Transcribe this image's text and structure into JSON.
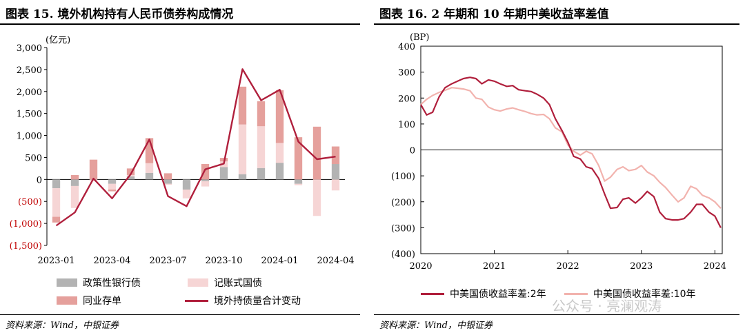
{
  "left": {
    "title": "图表 15. 境外机构持有人民币债券构成情况",
    "unit": "(亿元)",
    "source": "资料来源：Wind，中银证券",
    "legend": [
      {
        "label": "政策性银行债",
        "color": "#b3b3b3",
        "kind": "box"
      },
      {
        "label": "记账式国债",
        "color": "#f6d5d5",
        "kind": "box"
      },
      {
        "label": "同业存单",
        "color": "#e5a09c",
        "kind": "box"
      },
      {
        "label": "境外持债量合计变动",
        "color": "#b01f3c",
        "kind": "line"
      }
    ]
  },
  "right": {
    "title": "图表 16. 2 年期和 10 年期中美收益率差值",
    "unit": "(BP)",
    "source": "资料来源：Wind，中银证券",
    "legend": [
      {
        "label": "中美国债收益率差:2年",
        "color": "#b01f3c"
      },
      {
        "label": "中美国债收益率差:10年",
        "color": "#f2b3ae"
      }
    ]
  },
  "watermark": "公众号 · 亮澜观涛",
  "chart_data": [
    {
      "type": "bar",
      "title": "图表 15. 境外机构持有人民币债券构成情况",
      "ylabel": "(亿元)",
      "ylim": [
        -1500,
        3000
      ],
      "yticks": [
        3000,
        2500,
        2000,
        1500,
        1000,
        500,
        0,
        -500,
        -1000,
        -1500
      ],
      "ytick_labels": [
        "3,000",
        "2,500",
        "2,000",
        "1,500",
        "1,000",
        "500",
        "0",
        "(500)",
        "(1,000)",
        "(1,500)"
      ],
      "categories": [
        "2023-01",
        "2023-02",
        "2023-03",
        "2023-04",
        "2023-05",
        "2023-06",
        "2023-07",
        "2023-08",
        "2023-09",
        "2023-10",
        "2023-11",
        "2023-12",
        "2024-01",
        "2024-02",
        "2024-03",
        "2024-04"
      ],
      "xtick_labels": {
        "2023-01": "2023-01",
        "2023-04": "2023-04",
        "2023-07": "2023-07",
        "2023-10": "2023-10",
        "2024-01": "2024-01",
        "2024-04": "2024-04"
      },
      "stacked": true,
      "series": [
        {
          "name": "政策性银行债",
          "color": "#b3b3b3",
          "values": [
            -200,
            -150,
            0,
            -100,
            70,
            150,
            -100,
            -230,
            -40,
            280,
            120,
            260,
            380,
            -100,
            0,
            350
          ]
        },
        {
          "name": "记账式国债",
          "color": "#f6d5d5",
          "values": [
            -650,
            -500,
            -40,
            -130,
            30,
            220,
            -20,
            -200,
            -120,
            130,
            1130,
            950,
            450,
            -30,
            -830,
            -250
          ]
        },
        {
          "name": "同业存单",
          "color": "#e5a09c",
          "values": [
            -130,
            100,
            450,
            -40,
            150,
            570,
            140,
            0,
            350,
            80,
            860,
            570,
            1200,
            960,
            1200,
            400
          ]
        },
        {
          "name": "境外持债量合计变动",
          "color": "#b01f3c",
          "type": "line",
          "values": [
            -1050,
            -750,
            20,
            -430,
            120,
            910,
            -380,
            -610,
            230,
            360,
            2510,
            1800,
            2040,
            860,
            460,
            520
          ]
        }
      ]
    },
    {
      "type": "line",
      "title": "图表 16. 2 年期和 10 年期中美收益率差值",
      "ylabel": "(BP)",
      "ylim": [
        -400,
        400
      ],
      "yticks": [
        400,
        300,
        200,
        100,
        0,
        -100,
        -200,
        -300,
        -400
      ],
      "ytick_labels": [
        "400",
        "300",
        "200",
        "100",
        "0",
        "(100)",
        "(200)",
        "(300)",
        "(400)"
      ],
      "xlim": [
        2020.0,
        2024.1
      ],
      "xticks": [
        2020,
        2021,
        2022,
        2023,
        2024
      ],
      "xtick_labels": [
        "2020",
        "2021",
        "2022",
        "2023",
        "2024"
      ],
      "series": [
        {
          "name": "中美国债收益率差:2年",
          "color": "#b01f3c",
          "x": [
            2020.0,
            2020.08,
            2020.16,
            2020.25,
            2020.33,
            2020.42,
            2020.5,
            2020.58,
            2020.67,
            2020.75,
            2020.83,
            2020.92,
            2021.0,
            2021.08,
            2021.17,
            2021.25,
            2021.33,
            2021.42,
            2021.5,
            2021.58,
            2021.67,
            2021.75,
            2021.83,
            2021.92,
            2022.0,
            2022.08,
            2022.17,
            2022.25,
            2022.33,
            2022.42,
            2022.5,
            2022.58,
            2022.67,
            2022.75,
            2022.83,
            2022.92,
            2023.0,
            2023.08,
            2023.17,
            2023.25,
            2023.33,
            2023.42,
            2023.5,
            2023.58,
            2023.67,
            2023.75,
            2023.83,
            2023.92,
            2024.0,
            2024.08
          ],
          "y": [
            175,
            135,
            145,
            205,
            240,
            255,
            265,
            275,
            280,
            275,
            255,
            270,
            265,
            255,
            245,
            248,
            232,
            228,
            225,
            215,
            200,
            175,
            120,
            75,
            30,
            -25,
            -35,
            -65,
            -72,
            -110,
            -170,
            -225,
            -222,
            -190,
            -185,
            -205,
            -185,
            -160,
            -180,
            -240,
            -265,
            -270,
            -270,
            -265,
            -240,
            -210,
            -210,
            -240,
            -255,
            -300
          ]
        },
        {
          "name": "中美国债收益率差:10年",
          "color": "#f2b3ae",
          "x": [
            2020.0,
            2020.08,
            2020.16,
            2020.25,
            2020.33,
            2020.42,
            2020.5,
            2020.58,
            2020.67,
            2020.75,
            2020.83,
            2020.92,
            2021.0,
            2021.08,
            2021.17,
            2021.25,
            2021.33,
            2021.42,
            2021.5,
            2021.58,
            2021.67,
            2021.75,
            2021.83,
            2021.92,
            2022.0,
            2022.08,
            2022.17,
            2022.25,
            2022.33,
            2022.42,
            2022.5,
            2022.58,
            2022.67,
            2022.75,
            2022.83,
            2022.92,
            2023.0,
            2023.08,
            2023.17,
            2023.25,
            2023.33,
            2023.42,
            2023.5,
            2023.58,
            2023.67,
            2023.75,
            2023.83,
            2023.92,
            2024.0,
            2024.08
          ],
          "y": [
            175,
            195,
            210,
            222,
            230,
            240,
            238,
            235,
            228,
            200,
            195,
            165,
            155,
            150,
            158,
            162,
            155,
            148,
            140,
            135,
            137,
            120,
            85,
            70,
            20,
            -5,
            -20,
            -5,
            -15,
            -60,
            -120,
            -105,
            -75,
            -65,
            -80,
            -75,
            -60,
            -85,
            -100,
            -125,
            -145,
            -175,
            -200,
            -185,
            -140,
            -150,
            -175,
            -185,
            -200,
            -225
          ]
        }
      ]
    }
  ]
}
